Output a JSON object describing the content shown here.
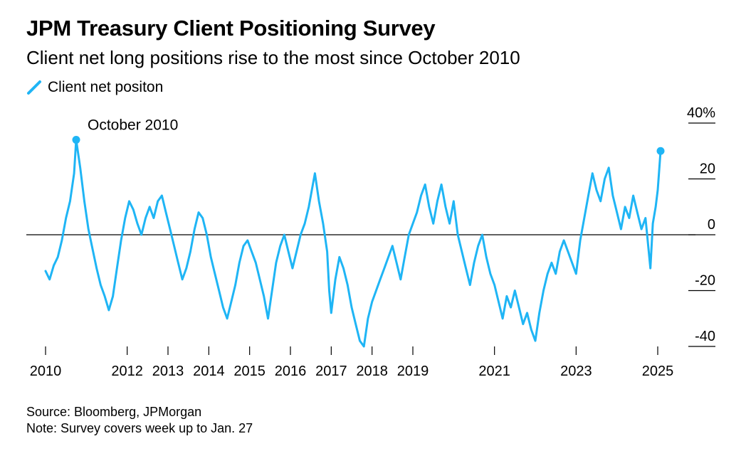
{
  "chart_data": {
    "type": "line",
    "title": "JPM Treasury Client Positioning Survey",
    "subtitle": "Client net long positions rise to the most since October 2010",
    "legend": [
      {
        "name": "Client net positon",
        "color": "#1fb5f5"
      }
    ],
    "source": "Source: Bloomberg, JPMorgan",
    "note": "Note: Survey covers week up to Jan. 27",
    "xlim": [
      2010,
      2025.9
    ],
    "ylim": [
      -40,
      40
    ],
    "x_ticks": [
      2010,
      2012,
      2013,
      2014,
      2015,
      2016,
      2017,
      2018,
      2019,
      2021,
      2023,
      2025
    ],
    "x_tick_labels": [
      "2010",
      "2012",
      "2013",
      "2014",
      "2015",
      "2016",
      "2017",
      "2018",
      "2019",
      "2021",
      "2023",
      "2025"
    ],
    "y_ticks": [
      -40,
      -20,
      0,
      20,
      40
    ],
    "y_tick_labels": [
      "-40",
      "-20",
      "0",
      "20",
      "40%"
    ],
    "annotation": {
      "label": "October 2010",
      "x": 2010.75,
      "y": 34
    },
    "end_marker": {
      "x": 2025.07,
      "y": 30
    },
    "series": [
      {
        "name": "Client net positon",
        "points": [
          [
            2010.0,
            -13
          ],
          [
            2010.1,
            -16
          ],
          [
            2010.2,
            -11
          ],
          [
            2010.3,
            -8
          ],
          [
            2010.4,
            -2
          ],
          [
            2010.5,
            6
          ],
          [
            2010.6,
            12
          ],
          [
            2010.7,
            22
          ],
          [
            2010.75,
            34
          ],
          [
            2010.85,
            24
          ],
          [
            2010.95,
            12
          ],
          [
            2011.05,
            2
          ],
          [
            2011.15,
            -5
          ],
          [
            2011.25,
            -12
          ],
          [
            2011.35,
            -18
          ],
          [
            2011.45,
            -22
          ],
          [
            2011.55,
            -27
          ],
          [
            2011.65,
            -22
          ],
          [
            2011.75,
            -12
          ],
          [
            2011.85,
            -2
          ],
          [
            2011.95,
            6
          ],
          [
            2012.05,
            12
          ],
          [
            2012.15,
            9
          ],
          [
            2012.25,
            4
          ],
          [
            2012.35,
            0
          ],
          [
            2012.45,
            6
          ],
          [
            2012.55,
            10
          ],
          [
            2012.65,
            6
          ],
          [
            2012.75,
            12
          ],
          [
            2012.85,
            14
          ],
          [
            2012.95,
            8
          ],
          [
            2013.05,
            2
          ],
          [
            2013.15,
            -4
          ],
          [
            2013.25,
            -10
          ],
          [
            2013.35,
            -16
          ],
          [
            2013.45,
            -12
          ],
          [
            2013.55,
            -6
          ],
          [
            2013.65,
            2
          ],
          [
            2013.75,
            8
          ],
          [
            2013.85,
            6
          ],
          [
            2013.95,
            0
          ],
          [
            2014.05,
            -8
          ],
          [
            2014.15,
            -14
          ],
          [
            2014.25,
            -20
          ],
          [
            2014.35,
            -26
          ],
          [
            2014.45,
            -30
          ],
          [
            2014.55,
            -24
          ],
          [
            2014.65,
            -18
          ],
          [
            2014.75,
            -10
          ],
          [
            2014.85,
            -4
          ],
          [
            2014.95,
            -2
          ],
          [
            2015.05,
            -6
          ],
          [
            2015.15,
            -10
          ],
          [
            2015.25,
            -16
          ],
          [
            2015.35,
            -22
          ],
          [
            2015.45,
            -30
          ],
          [
            2015.55,
            -20
          ],
          [
            2015.65,
            -10
          ],
          [
            2015.75,
            -4
          ],
          [
            2015.85,
            0
          ],
          [
            2015.95,
            -6
          ],
          [
            2016.05,
            -12
          ],
          [
            2016.15,
            -6
          ],
          [
            2016.25,
            0
          ],
          [
            2016.35,
            4
          ],
          [
            2016.45,
            10
          ],
          [
            2016.55,
            18
          ],
          [
            2016.6,
            22
          ],
          [
            2016.7,
            12
          ],
          [
            2016.8,
            4
          ],
          [
            2016.9,
            -6
          ],
          [
            2016.95,
            -20
          ],
          [
            2017.0,
            -28
          ],
          [
            2017.1,
            -16
          ],
          [
            2017.2,
            -8
          ],
          [
            2017.3,
            -12
          ],
          [
            2017.4,
            -18
          ],
          [
            2017.5,
            -26
          ],
          [
            2017.6,
            -32
          ],
          [
            2017.7,
            -38
          ],
          [
            2017.8,
            -40
          ],
          [
            2017.9,
            -30
          ],
          [
            2018.0,
            -24
          ],
          [
            2018.1,
            -20
          ],
          [
            2018.2,
            -16
          ],
          [
            2018.3,
            -12
          ],
          [
            2018.4,
            -8
          ],
          [
            2018.5,
            -4
          ],
          [
            2018.6,
            -10
          ],
          [
            2018.7,
            -16
          ],
          [
            2018.8,
            -8
          ],
          [
            2018.9,
            0
          ],
          [
            2019.0,
            4
          ],
          [
            2019.1,
            8
          ],
          [
            2019.2,
            14
          ],
          [
            2019.3,
            18
          ],
          [
            2019.4,
            10
          ],
          [
            2019.5,
            4
          ],
          [
            2019.6,
            12
          ],
          [
            2019.7,
            18
          ],
          [
            2019.8,
            10
          ],
          [
            2019.9,
            4
          ],
          [
            2020.0,
            12
          ],
          [
            2020.05,
            6
          ],
          [
            2020.1,
            0
          ],
          [
            2020.2,
            -6
          ],
          [
            2020.3,
            -12
          ],
          [
            2020.4,
            -18
          ],
          [
            2020.5,
            -10
          ],
          [
            2020.6,
            -4
          ],
          [
            2020.7,
            0
          ],
          [
            2020.8,
            -8
          ],
          [
            2020.9,
            -14
          ],
          [
            2021.0,
            -18
          ],
          [
            2021.1,
            -24
          ],
          [
            2021.2,
            -30
          ],
          [
            2021.3,
            -22
          ],
          [
            2021.4,
            -26
          ],
          [
            2021.5,
            -20
          ],
          [
            2021.6,
            -26
          ],
          [
            2021.7,
            -32
          ],
          [
            2021.8,
            -28
          ],
          [
            2021.9,
            -34
          ],
          [
            2022.0,
            -38
          ],
          [
            2022.1,
            -28
          ],
          [
            2022.2,
            -20
          ],
          [
            2022.3,
            -14
          ],
          [
            2022.4,
            -10
          ],
          [
            2022.5,
            -14
          ],
          [
            2022.6,
            -6
          ],
          [
            2022.7,
            -2
          ],
          [
            2022.8,
            -6
          ],
          [
            2022.9,
            -10
          ],
          [
            2023.0,
            -14
          ],
          [
            2023.1,
            -2
          ],
          [
            2023.2,
            6
          ],
          [
            2023.3,
            14
          ],
          [
            2023.4,
            22
          ],
          [
            2023.5,
            16
          ],
          [
            2023.6,
            12
          ],
          [
            2023.7,
            20
          ],
          [
            2023.8,
            24
          ],
          [
            2023.9,
            14
          ],
          [
            2024.0,
            8
          ],
          [
            2024.1,
            2
          ],
          [
            2024.2,
            10
          ],
          [
            2024.3,
            6
          ],
          [
            2024.4,
            14
          ],
          [
            2024.5,
            8
          ],
          [
            2024.6,
            2
          ],
          [
            2024.7,
            6
          ],
          [
            2024.78,
            -6
          ],
          [
            2024.82,
            -12
          ],
          [
            2024.88,
            4
          ],
          [
            2024.95,
            10
          ],
          [
            2025.0,
            16
          ],
          [
            2025.07,
            30
          ]
        ]
      }
    ]
  }
}
